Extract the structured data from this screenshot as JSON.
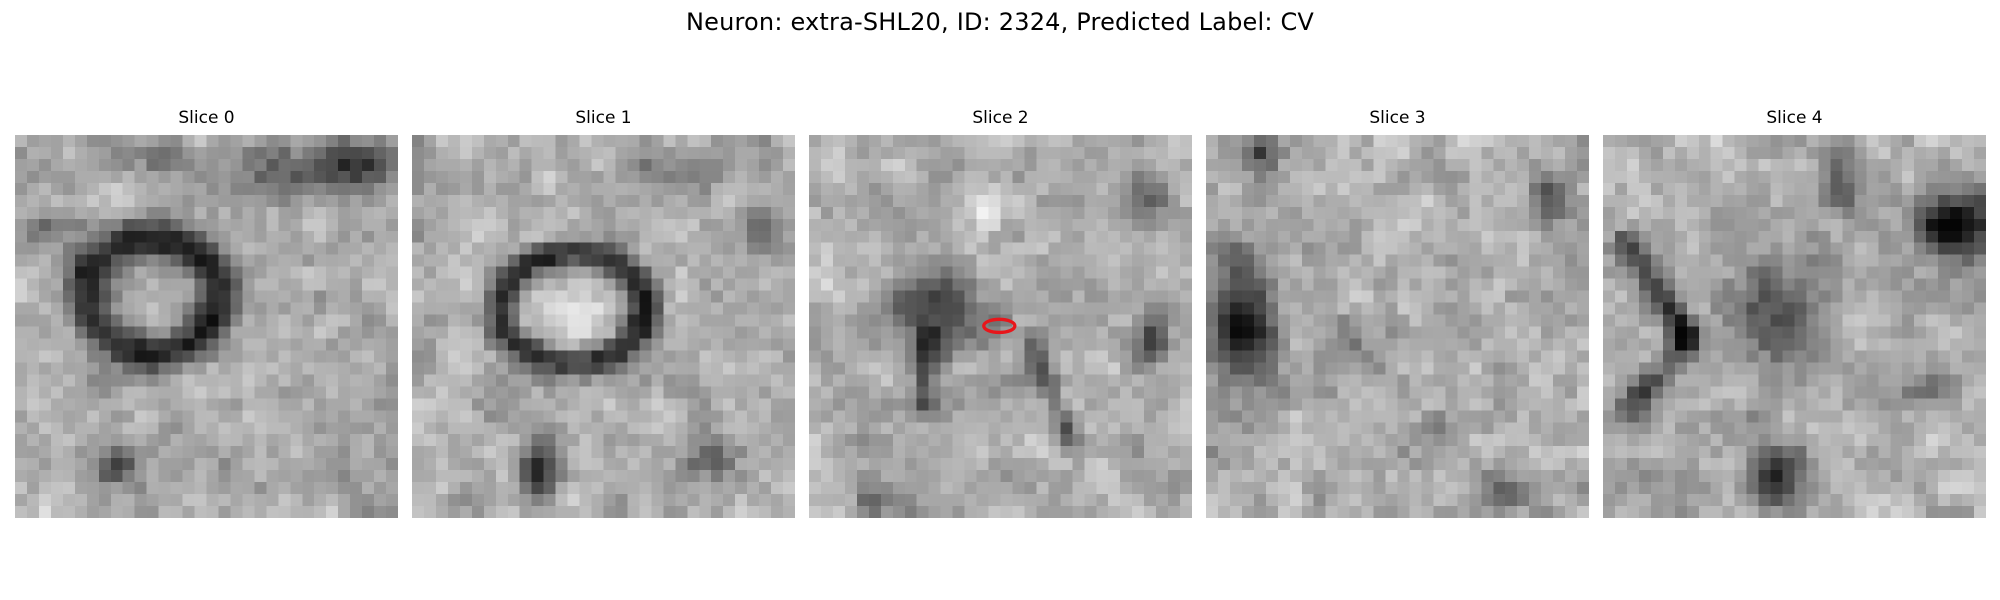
{
  "figure": {
    "title": "Neuron: extra-SHL20, ID: 2324, Predicted Label: CV"
  },
  "panels": [
    {
      "title": "Slice 0",
      "has_marker": false
    },
    {
      "title": "Slice 1",
      "has_marker": false
    },
    {
      "title": "Slice 2",
      "has_marker": true
    },
    {
      "title": "Slice 3",
      "has_marker": false
    },
    {
      "title": "Slice 4",
      "has_marker": false
    }
  ],
  "marker": {
    "shape": "ellipse",
    "color": "#e8161b",
    "panel_index": 2
  },
  "colormap": "gray"
}
